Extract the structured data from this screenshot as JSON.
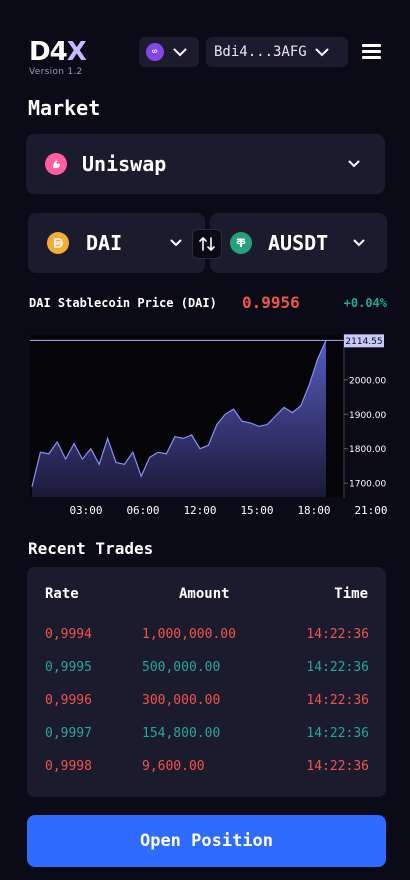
{
  "header": {
    "logo_main": "D4",
    "logo_x": "X",
    "version": "Version 1.2",
    "wallet_address": "Bdi4...3AFG",
    "chain_icon": "polygon-icon",
    "accent_color": "#8247e5"
  },
  "market": {
    "title": "Market",
    "exchange": {
      "label": "Uniswap",
      "icon": "uniswap-icon",
      "color": "#ff007a"
    },
    "from_token": {
      "label": "DAI",
      "icon": "dai-icon",
      "color": "#f5ac37"
    },
    "to_token": {
      "label": "AUSDT",
      "icon": "tether-icon",
      "color": "#26a17b"
    }
  },
  "price": {
    "label": "DAI Stablecoin Price (DAI)",
    "value": "0.9956",
    "change": "+0.04%"
  },
  "chart_data": {
    "type": "area",
    "x_ticks": [
      "03:00",
      "06:00",
      "12:00",
      "15:00",
      "18:00",
      "21:00"
    ],
    "y_ticks": [
      "1700.00",
      "1800.00",
      "1900.00",
      "2000.00"
    ],
    "current_label": "2114.55",
    "ylim": [
      1660,
      2130
    ],
    "values": [
      1690,
      1790,
      1785,
      1820,
      1770,
      1815,
      1770,
      1800,
      1755,
      1830,
      1760,
      1755,
      1790,
      1720,
      1775,
      1790,
      1785,
      1835,
      1830,
      1840,
      1800,
      1810,
      1870,
      1900,
      1915,
      1880,
      1875,
      1865,
      1870,
      1895,
      1920,
      1905,
      1925,
      1985,
      2060,
      2114.55
    ],
    "line_color": "#8c8ff5",
    "grid": false
  },
  "trades": {
    "title": "Recent Trades",
    "headers": {
      "rate": "Rate",
      "amount": "Amount",
      "time": "Time"
    },
    "rows": [
      {
        "rate": "0,9994",
        "amount": "1,000,000.00",
        "time": "14:22:36",
        "side": "sell"
      },
      {
        "rate": "0,9995",
        "amount": "500,000.00",
        "time": "14:22:36",
        "side": "buy"
      },
      {
        "rate": "0,9996",
        "amount": "300,000.00",
        "time": "14:22:36",
        "side": "sell"
      },
      {
        "rate": "0,9997",
        "amount": "154,800.00",
        "time": "14:22:36",
        "side": "buy"
      },
      {
        "rate": "0,9998",
        "amount": "9,600.00",
        "time": "14:22:36",
        "side": "sell"
      }
    ]
  },
  "actions": {
    "open_position": "Open Position"
  }
}
